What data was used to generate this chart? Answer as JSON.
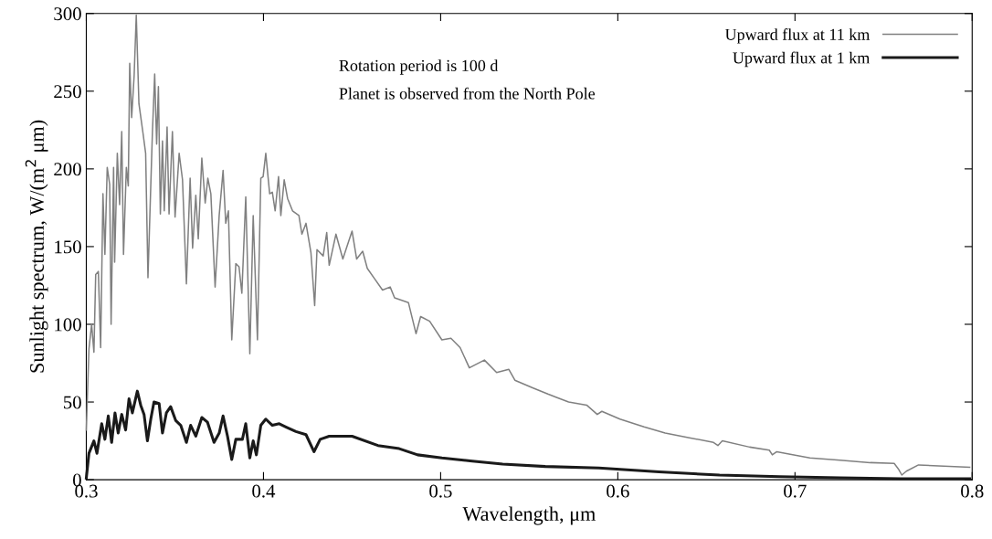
{
  "chart_data": {
    "type": "line",
    "xlabel": "Wavelength, μm",
    "ylabel": "Sunlight spectrum, W/(m$^{2}$ μm)",
    "xlim": [
      0.3,
      0.8
    ],
    "xticks": [
      0.3,
      0.4,
      0.5,
      0.6,
      0.7,
      0.8
    ],
    "ylim": [
      0,
      300
    ],
    "yticks": [
      0,
      50,
      100,
      150,
      200,
      250,
      300
    ],
    "grid": false,
    "legend": "top right",
    "annotations": [
      "Rotation period is 100 d",
      "Planet is observed from the North Pole"
    ],
    "series": [
      {
        "name": "Upward flux at 11 km",
        "color": "#808080",
        "x": [
          0.3,
          0.3015,
          0.303,
          0.3043,
          0.3053,
          0.3068,
          0.3081,
          0.3094,
          0.3105,
          0.3118,
          0.3132,
          0.314,
          0.3154,
          0.316,
          0.3175,
          0.3188,
          0.32,
          0.321,
          0.3226,
          0.3237,
          0.3245,
          0.3256,
          0.327,
          0.3282,
          0.3297,
          0.332,
          0.3335,
          0.3348,
          0.3358,
          0.3373,
          0.3386,
          0.3397,
          0.3407,
          0.3418,
          0.343,
          0.344,
          0.3456,
          0.3467,
          0.3486,
          0.3501,
          0.3524,
          0.3543,
          0.3565,
          0.3586,
          0.36,
          0.3618,
          0.3632,
          0.3652,
          0.3671,
          0.3686,
          0.3703,
          0.3727,
          0.375,
          0.3772,
          0.3787,
          0.3802,
          0.3821,
          0.3844,
          0.3862,
          0.3878,
          0.39,
          0.3923,
          0.3942,
          0.3966,
          0.3985,
          0.3998,
          0.4013,
          0.4035,
          0.405,
          0.4066,
          0.4085,
          0.4098,
          0.4117,
          0.4136,
          0.4164,
          0.42,
          0.4217,
          0.424,
          0.4268,
          0.4289,
          0.4302,
          0.4337,
          0.4357,
          0.4371,
          0.4409,
          0.4448,
          0.45,
          0.4526,
          0.456,
          0.4586,
          0.4629,
          0.4672,
          0.4715,
          0.474,
          0.4818,
          0.4861,
          0.4887,
          0.4938,
          0.5007,
          0.5058,
          0.511,
          0.5162,
          0.5247,
          0.5316,
          0.5385,
          0.5419,
          0.5522,
          0.5608,
          0.5654,
          0.5722,
          0.5824,
          0.5884,
          0.591,
          0.6012,
          0.6148,
          0.6267,
          0.6404,
          0.654,
          0.6565,
          0.659,
          0.6744,
          0.6855,
          0.6872,
          0.6897,
          0.7084,
          0.7255,
          0.7425,
          0.756,
          0.7586,
          0.7603,
          0.7629,
          0.7697,
          0.7986
        ],
        "values": [
          32,
          84,
          100,
          82,
          132,
          134,
          85,
          184,
          145,
          201,
          190,
          100,
          201,
          140,
          210,
          177,
          224,
          145,
          201,
          189,
          268,
          233,
          260,
          299,
          242,
          223,
          210,
          130,
          167,
          223,
          261,
          216,
          253,
          171,
          218,
          173,
          227,
          171,
          224,
          169,
          210,
          193,
          126,
          194,
          149,
          183,
          155,
          207,
          178,
          194,
          184,
          124,
          170,
          199,
          165,
          173,
          90,
          139,
          137,
          120,
          182,
          81,
          170,
          90,
          194,
          195,
          210,
          184,
          185,
          173,
          195,
          170,
          193,
          181,
          173,
          170,
          158,
          165,
          146,
          112,
          148,
          144,
          159,
          138,
          158,
          142,
          160,
          142,
          147,
          136,
          129,
          122,
          124,
          117,
          114,
          94,
          105,
          102,
          90,
          91,
          85,
          72,
          77,
          69,
          71,
          64,
          59,
          55,
          53,
          50,
          48,
          42,
          44,
          39,
          34,
          30,
          27,
          24,
          22,
          25,
          21,
          19,
          16,
          18,
          14,
          12.5,
          11,
          10.5,
          6.5,
          3,
          5.5,
          9.5,
          8
        ]
      },
      {
        "name": "Upward flux at 1 km",
        "color": "#1a1a1a",
        "x": [
          0.3,
          0.3015,
          0.3043,
          0.306,
          0.3087,
          0.3105,
          0.3124,
          0.3143,
          0.3162,
          0.318,
          0.32,
          0.3222,
          0.3241,
          0.326,
          0.3288,
          0.3307,
          0.3326,
          0.3345,
          0.3364,
          0.3382,
          0.3411,
          0.343,
          0.3452,
          0.3476,
          0.3505,
          0.3533,
          0.3565,
          0.3589,
          0.3618,
          0.3652,
          0.3684,
          0.3721,
          0.375,
          0.3772,
          0.3797,
          0.3821,
          0.3844,
          0.3881,
          0.39,
          0.3923,
          0.3942,
          0.396,
          0.3985,
          0.4013,
          0.405,
          0.4089,
          0.4126,
          0.4183,
          0.424,
          0.4285,
          0.432,
          0.4371,
          0.45,
          0.4646,
          0.4766,
          0.487,
          0.5007,
          0.5179,
          0.535,
          0.5591,
          0.5893,
          0.6233,
          0.6574,
          0.6914,
          0.7255,
          0.7596,
          0.7986
        ],
        "values": [
          1,
          17,
          25,
          17,
          36,
          26,
          41,
          24,
          43,
          30,
          42,
          32,
          52,
          43,
          57,
          48,
          42,
          25,
          39,
          50,
          49,
          30,
          43,
          47,
          38,
          35,
          24,
          35,
          28,
          40,
          37,
          24,
          30,
          41,
          28,
          13,
          26,
          26,
          36,
          14,
          25,
          16,
          35,
          39,
          35,
          36,
          34,
          31,
          29,
          18,
          26,
          28,
          28,
          22,
          20,
          16,
          14,
          12,
          10,
          8.5,
          7.5,
          5,
          3,
          2,
          1.2,
          0.6,
          0.6
        ]
      }
    ]
  }
}
